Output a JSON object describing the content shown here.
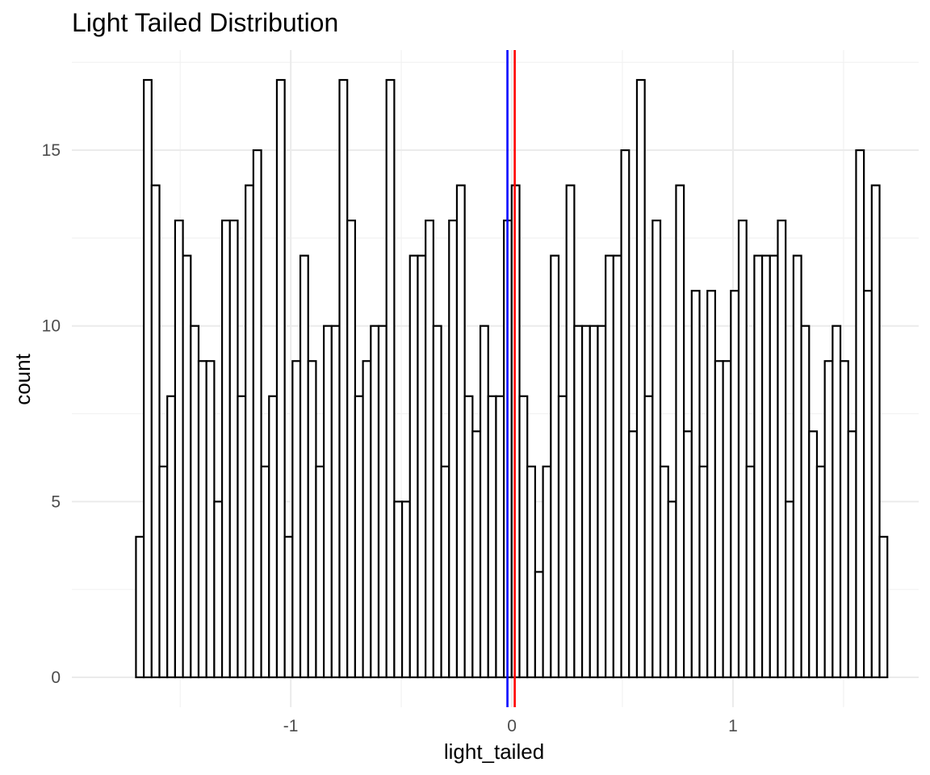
{
  "chart_data": {
    "type": "bar",
    "title": "Light Tailed Distribution",
    "xlabel": "light_tailed",
    "ylabel": "count",
    "xlim": [
      -1.99,
      1.84
    ],
    "ylim": [
      -0.85,
      17.85
    ],
    "x_ticks": [
      -1,
      0,
      1
    ],
    "y_ticks": [
      0,
      5,
      10,
      15
    ],
    "x_minor_ticks": [
      -1.5,
      -0.5,
      0.5,
      1.5
    ],
    "y_minor_ticks": [
      2.5,
      7.5,
      12.5,
      17.5
    ],
    "grid": true,
    "bin_start": -1.7,
    "bin_width": 0.0354,
    "values": [
      4,
      17,
      14,
      6,
      8,
      13,
      12,
      10,
      9,
      9,
      5,
      13,
      13,
      8,
      14,
      15,
      6,
      8,
      17,
      4,
      9,
      12,
      9,
      6,
      10,
      10,
      17,
      13,
      8,
      9,
      10,
      10,
      17,
      5,
      5,
      12,
      12,
      13,
      10,
      6,
      13,
      14,
      8,
      7,
      10,
      8,
      8,
      13,
      14,
      8,
      6,
      3,
      6,
      12,
      8,
      14,
      10,
      10,
      10,
      10,
      12,
      12,
      15,
      7,
      17,
      8,
      13,
      6,
      5,
      14,
      7,
      11,
      6,
      11,
      9,
      9,
      11,
      13,
      6,
      12,
      12,
      12,
      13,
      5,
      12,
      10,
      7,
      6,
      9,
      10,
      9,
      7,
      15,
      11,
      14,
      4
    ],
    "vlines": [
      {
        "x": -0.02,
        "color": "#0000ff"
      },
      {
        "x": 0.013,
        "color": "#ff0000"
      }
    ]
  }
}
